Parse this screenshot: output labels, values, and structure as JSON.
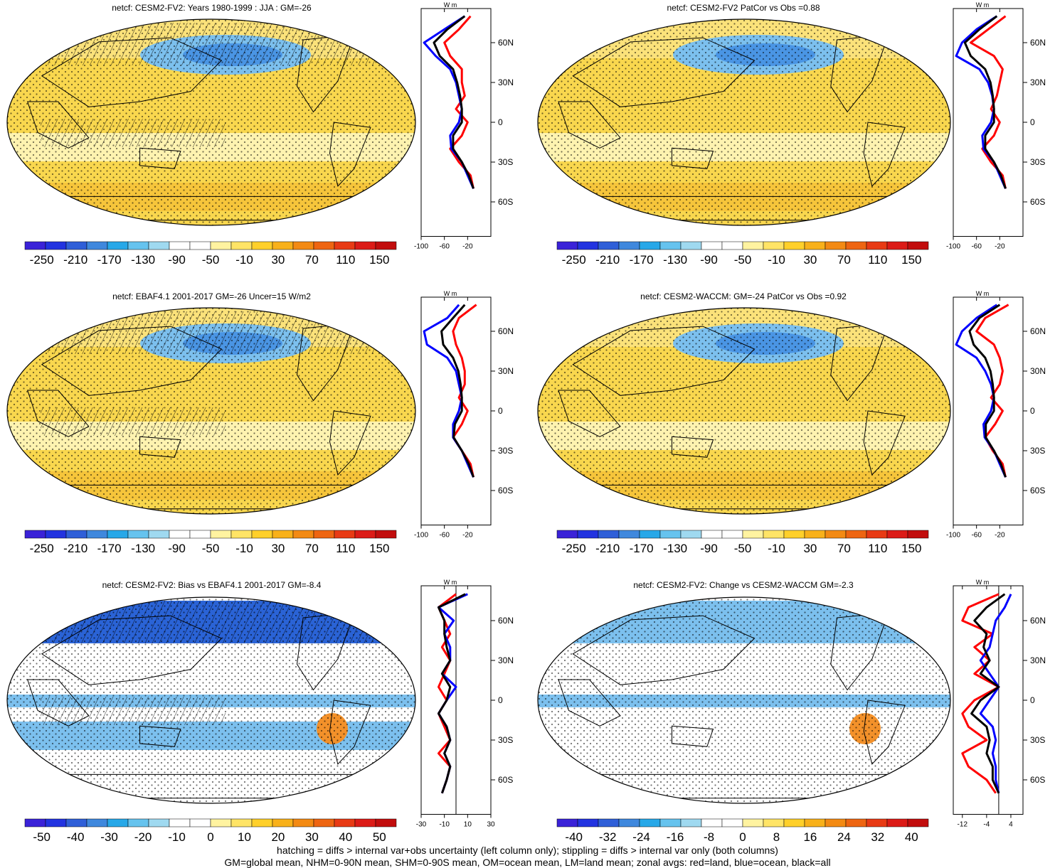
{
  "footer": {
    "line1": "hatching = diffs > internal var+obs uncertainty (left column only); stippling = diffs > internal var only (both columns)",
    "line2": "GM=global mean, NHM=0-90N mean, SHM=0-90S mean, OM=ocean mean, LM=land mean; zonal avgs: red=land, blue=ocean, black=all"
  },
  "zonal_units": "W m",
  "chart_data": [
    {
      "type": "heatmap",
      "title": "netcf: CESM2-FV2: Years 1980-1999 : JJA : GM=-26",
      "colorbar_labels": [
        "-250",
        "-210",
        "-170",
        "-130",
        "-90",
        "-50",
        "-10",
        "30",
        "70",
        "110",
        "150"
      ],
      "zonal_profile": {
        "lat_labels": [
          "60N",
          "30N",
          "0",
          "30S",
          "60S"
        ],
        "x_tick_labels": [
          "-100",
          "-60",
          "-20"
        ],
        "xlim": [
          -100,
          20
        ],
        "lat": [
          80,
          70,
          60,
          50,
          40,
          30,
          20,
          10,
          0,
          -10,
          -20,
          -30,
          -40,
          -50
        ],
        "series": [
          {
            "name": "land",
            "color": "#ff0000",
            "values": [
              -15,
              -35,
              -60,
              -50,
              -30,
              -30,
              -25,
              -40,
              -20,
              -30,
              -50,
              -35,
              -15,
              -10
            ]
          },
          {
            "name": "ocean",
            "color": "#0000ff",
            "values": [
              -25,
              -60,
              -95,
              -75,
              -50,
              -40,
              -35,
              -30,
              -35,
              -50,
              -48,
              -30,
              -20,
              -10
            ]
          },
          {
            "name": "all",
            "color": "#000000",
            "values": [
              -25,
              -55,
              -78,
              -68,
              -45,
              -38,
              -33,
              -30,
              -30,
              -45,
              -45,
              -30,
              -18,
              -10
            ]
          }
        ]
      }
    },
    {
      "type": "heatmap",
      "title": "netcf: CESM2-FV2 PatCor vs Obs =0.88",
      "colorbar_labels": [
        "-250",
        "-210",
        "-170",
        "-130",
        "-90",
        "-50",
        "-10",
        "30",
        "70",
        "110",
        "150"
      ],
      "zonal_profile": {
        "lat_labels": [
          "60N",
          "30N",
          "0",
          "30S",
          "60S"
        ],
        "x_tick_labels": [
          "-100",
          "-60",
          "-20"
        ],
        "xlim": [
          -100,
          20
        ],
        "lat": [
          80,
          70,
          60,
          50,
          40,
          30,
          20,
          10,
          0,
          -10,
          -20,
          -30,
          -40,
          -50
        ],
        "series": [
          {
            "name": "land",
            "color": "#ff0000",
            "values": [
              -10,
              -40,
              -70,
              -30,
              -15,
              -20,
              -25,
              -35,
              -20,
              -30,
              -50,
              -35,
              -15,
              -10
            ]
          },
          {
            "name": "ocean",
            "color": "#0000ff",
            "values": [
              -25,
              -60,
              -85,
              -95,
              -55,
              -40,
              -33,
              -30,
              -35,
              -50,
              -48,
              -30,
              -20,
              -10
            ]
          },
          {
            "name": "all",
            "color": "#000000",
            "values": [
              -25,
              -55,
              -80,
              -70,
              -45,
              -36,
              -32,
              -30,
              -30,
              -45,
              -45,
              -30,
              -18,
              -10
            ]
          }
        ]
      }
    },
    {
      "type": "heatmap",
      "title": "netcf: EBAF4.1 2001-2017 GM=-26 Uncer=15 W/m2",
      "colorbar_labels": [
        "-250",
        "-210",
        "-170",
        "-130",
        "-90",
        "-50",
        "-10",
        "30",
        "70",
        "110",
        "150"
      ],
      "zonal_profile": {
        "lat_labels": [
          "60N",
          "30N",
          "0",
          "30S",
          "60S"
        ],
        "x_tick_labels": [
          "-100",
          "-60",
          "-20"
        ],
        "xlim": [
          -100,
          20
        ],
        "lat": [
          80,
          70,
          60,
          50,
          40,
          30,
          20,
          10,
          0,
          -10,
          -20,
          -30,
          -40,
          -50
        ],
        "series": [
          {
            "name": "land",
            "color": "#ff0000",
            "values": [
              -5,
              -35,
              -45,
              -40,
              -30,
              -25,
              -25,
              -35,
              -20,
              -30,
              -45,
              -30,
              -15,
              -10
            ]
          },
          {
            "name": "ocean",
            "color": "#0000ff",
            "values": [
              -35,
              -55,
              -95,
              -90,
              -55,
              -40,
              -35,
              -30,
              -35,
              -45,
              -45,
              -30,
              -20,
              -10
            ]
          },
          {
            "name": "all",
            "color": "#000000",
            "values": [
              -25,
              -45,
              -65,
              -62,
              -45,
              -36,
              -32,
              -30,
              -30,
              -42,
              -44,
              -30,
              -18,
              -10
            ]
          }
        ]
      }
    },
    {
      "type": "heatmap",
      "title": "netcf: CESM2-WACCM: GM=-24 PatCor vs Obs =0.92",
      "colorbar_labels": [
        "-250",
        "-210",
        "-170",
        "-130",
        "-90",
        "-50",
        "-10",
        "30",
        "70",
        "110",
        "150"
      ],
      "zonal_profile": {
        "lat_labels": [
          "60N",
          "30N",
          "0",
          "30S",
          "60S"
        ],
        "x_tick_labels": [
          "-100",
          "-60",
          "-20"
        ],
        "xlim": [
          -100,
          20
        ],
        "lat": [
          80,
          70,
          60,
          50,
          40,
          30,
          20,
          10,
          0,
          -10,
          -20,
          -30,
          -40,
          -50
        ],
        "series": [
          {
            "name": "land",
            "color": "#ff0000",
            "values": [
              -5,
              -45,
              -60,
              -30,
              -20,
              -15,
              -20,
              -35,
              -15,
              -28,
              -45,
              -32,
              -15,
              -10
            ]
          },
          {
            "name": "ocean",
            "color": "#0000ff",
            "values": [
              -25,
              -60,
              -85,
              -95,
              -60,
              -45,
              -35,
              -30,
              -35,
              -48,
              -46,
              -30,
              -20,
              -10
            ]
          },
          {
            "name": "all",
            "color": "#000000",
            "values": [
              -20,
              -55,
              -72,
              -65,
              -45,
              -36,
              -32,
              -30,
              -30,
              -44,
              -44,
              -30,
              -18,
              -10
            ]
          }
        ]
      }
    },
    {
      "type": "heatmap",
      "title": "netcf: CESM2-FV2: Bias vs EBAF4.1 2001-2017 GM=-8.4",
      "colorbar_labels": [
        "-50",
        "-40",
        "-30",
        "-20",
        "-10",
        "0",
        "10",
        "20",
        "30",
        "40",
        "50"
      ],
      "zonal_profile": {
        "lat_labels": [
          "60N",
          "30N",
          "0",
          "30S",
          "60S"
        ],
        "x_tick_labels": [
          "-30",
          "-10",
          "10",
          "30"
        ],
        "xlim": [
          -30,
          30
        ],
        "lat": [
          80,
          70,
          60,
          50,
          40,
          30,
          20,
          10,
          0,
          -10,
          -20,
          -30,
          -40,
          -50,
          -60,
          -70
        ],
        "series": [
          {
            "name": "land",
            "color": "#ff0000",
            "values": [
              0,
              -15,
              -10,
              -5,
              -12,
              -5,
              -10,
              -15,
              -8,
              -15,
              -10,
              -5,
              -15,
              -5,
              -8,
              -12
            ]
          },
          {
            "name": "ocean",
            "color": "#0000ff",
            "values": [
              10,
              -15,
              -2,
              -10,
              -5,
              -5,
              -12,
              0,
              -8,
              -15,
              -8,
              -5,
              -10,
              -5,
              -8,
              -12
            ]
          },
          {
            "name": "all",
            "color": "#000000",
            "values": [
              8,
              -15,
              -10,
              -10,
              -8,
              -5,
              -12,
              -5,
              -8,
              -15,
              -8,
              -5,
              -10,
              -5,
              -8,
              -12
            ]
          }
        ]
      }
    },
    {
      "type": "heatmap",
      "title": "netcf: CESM2-FV2: Change vs CESM2-WACCM GM=-2.3",
      "colorbar_labels": [
        "-40",
        "-32",
        "-24",
        "-16",
        "-8",
        "0",
        "8",
        "16",
        "24",
        "32",
        "40"
      ],
      "zonal_profile": {
        "lat_labels": [
          "60N",
          "30N",
          "0",
          "30S",
          "60S"
        ],
        "x_tick_labels": [
          "-12",
          "-4",
          "4"
        ],
        "xlim": [
          -15,
          8
        ],
        "lat": [
          80,
          70,
          60,
          50,
          40,
          30,
          20,
          10,
          0,
          -10,
          -20,
          -30,
          -40,
          -50,
          -60,
          -70
        ],
        "series": [
          {
            "name": "land",
            "color": "#ff0000",
            "values": [
              0,
              -10,
              -12,
              -2,
              -8,
              -3,
              -8,
              0,
              -8,
              -12,
              -10,
              -4,
              -12,
              -10,
              -4,
              -1
            ]
          },
          {
            "name": "ocean",
            "color": "#0000ff",
            "values": [
              4,
              2,
              -1,
              -2,
              -3,
              -6,
              -3,
              0,
              -3,
              -6,
              -2,
              -1,
              -2,
              -1,
              -1,
              0
            ]
          },
          {
            "name": "all",
            "color": "#000000",
            "values": [
              2,
              -4,
              -8,
              -4,
              -5,
              -3,
              -6,
              0,
              -6,
              -9,
              -4,
              -3,
              -4,
              -2,
              -2,
              0
            ]
          }
        ]
      }
    }
  ]
}
